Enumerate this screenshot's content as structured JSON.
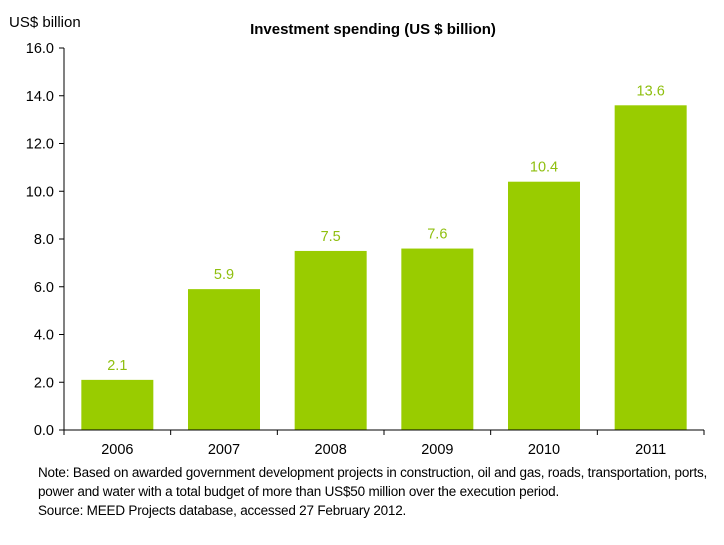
{
  "chart_data": {
    "type": "bar",
    "title": "Investment spending (US $ billion)",
    "ylabel": "US$ billion",
    "xlabel": "",
    "categories": [
      "2006",
      "2007",
      "2008",
      "2009",
      "2010",
      "2011"
    ],
    "values": [
      2.1,
      5.9,
      7.5,
      7.6,
      10.4,
      13.6
    ],
    "data_labels": [
      "2.1",
      "5.9",
      "7.5",
      "7.6",
      "10.4",
      "13.6"
    ],
    "ylim": [
      0,
      16
    ],
    "yticks": [
      "0.0",
      "2.0",
      "4.0",
      "6.0",
      "8.0",
      "10.0",
      "12.0",
      "14.0",
      "16.0"
    ],
    "grid": false,
    "legend": "none",
    "bar_color": "#99cc00",
    "label_color": "#8fbf0f"
  },
  "notes": {
    "note": "Note: Based on awarded government development projects in construction, oil and gas, roads, transportation, ports, power and water with a total budget of more than US$50 million over the execution period.",
    "source": "Source: MEED Projects database, accessed 27 February 2012."
  }
}
